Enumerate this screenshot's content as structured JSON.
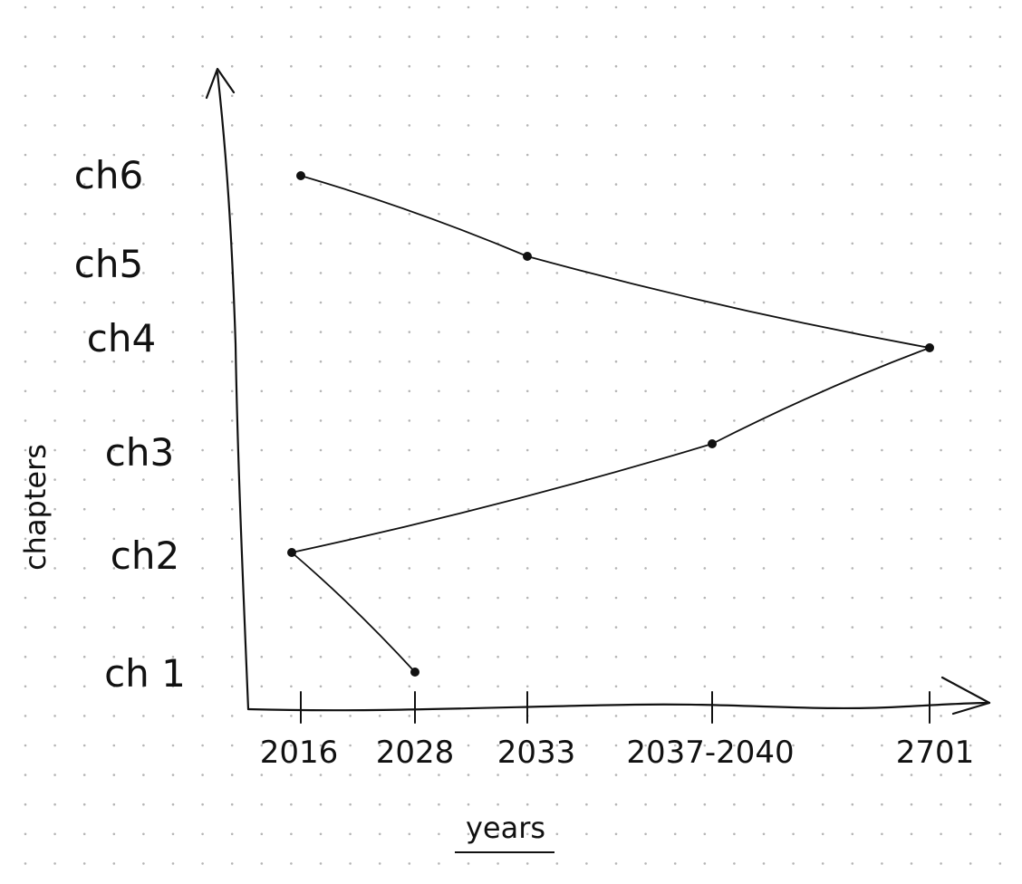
{
  "chart_data": {
    "type": "line",
    "title": "",
    "xlabel": "years",
    "ylabel": "chapters",
    "x_categories": [
      "2016",
      "2028",
      "2033",
      "2037-2040",
      "2701"
    ],
    "y_categories": [
      "ch 1",
      "ch2",
      "ch3",
      "ch4",
      "ch5",
      "ch6"
    ],
    "grid": "dot-grid",
    "series": [
      {
        "points": [
          {
            "x": "2028",
            "y": "ch 1"
          },
          {
            "x": "2016",
            "y": "ch2"
          },
          {
            "x": "2037-2040",
            "y": "ch3"
          },
          {
            "x": "2701",
            "y": "ch4"
          },
          {
            "x": "2033",
            "y": "ch5"
          },
          {
            "x": "2016",
            "y": "ch6"
          }
        ]
      }
    ]
  }
}
